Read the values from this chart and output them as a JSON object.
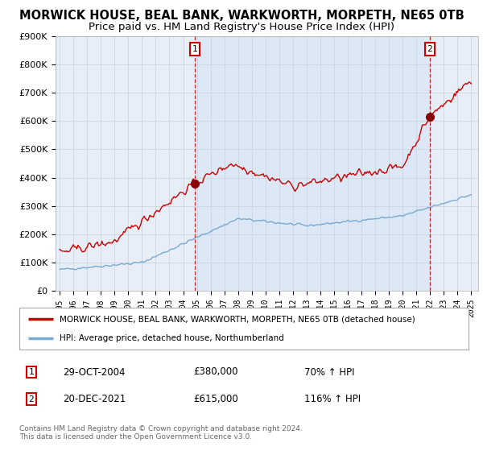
{
  "title": "MORWICK HOUSE, BEAL BANK, WARKWORTH, MORPETH, NE65 0TB",
  "subtitle": "Price paid vs. HM Land Registry's House Price Index (HPI)",
  "ylim": [
    0,
    900000
  ],
  "yticks": [
    0,
    100000,
    200000,
    300000,
    400000,
    500000,
    600000,
    700000,
    800000,
    900000
  ],
  "ytick_labels": [
    "£0",
    "£100K",
    "£200K",
    "£300K",
    "£400K",
    "£500K",
    "£600K",
    "£700K",
    "£800K",
    "£900K"
  ],
  "x_start_year": 1995,
  "x_end_year": 2025,
  "red_line_color": "#cc0000",
  "blue_line_color": "#7aaad0",
  "fill_color": "#dce8f5",
  "marker_color": "#8b0000",
  "sale1_year": 2004.83,
  "sale1_price": 380000,
  "sale2_year": 2021.97,
  "sale2_price": 615000,
  "legend_red_label": "MORWICK HOUSE, BEAL BANK, WARKWORTH, MORPETH, NE65 0TB (detached house)",
  "legend_blue_label": "HPI: Average price, detached house, Northumberland",
  "transaction1_date": "29-OCT-2004",
  "transaction1_price": "£380,000",
  "transaction1_hpi": "70% ↑ HPI",
  "transaction2_date": "20-DEC-2021",
  "transaction2_price": "£615,000",
  "transaction2_hpi": "116% ↑ HPI",
  "footer": "Contains HM Land Registry data © Crown copyright and database right 2024.\nThis data is licensed under the Open Government Licence v3.0.",
  "bg_color": "#ffffff",
  "plot_bg_color": "#e8eef8",
  "grid_color": "#c8d0e0",
  "title_fontsize": 10.5,
  "subtitle_fontsize": 9.5
}
